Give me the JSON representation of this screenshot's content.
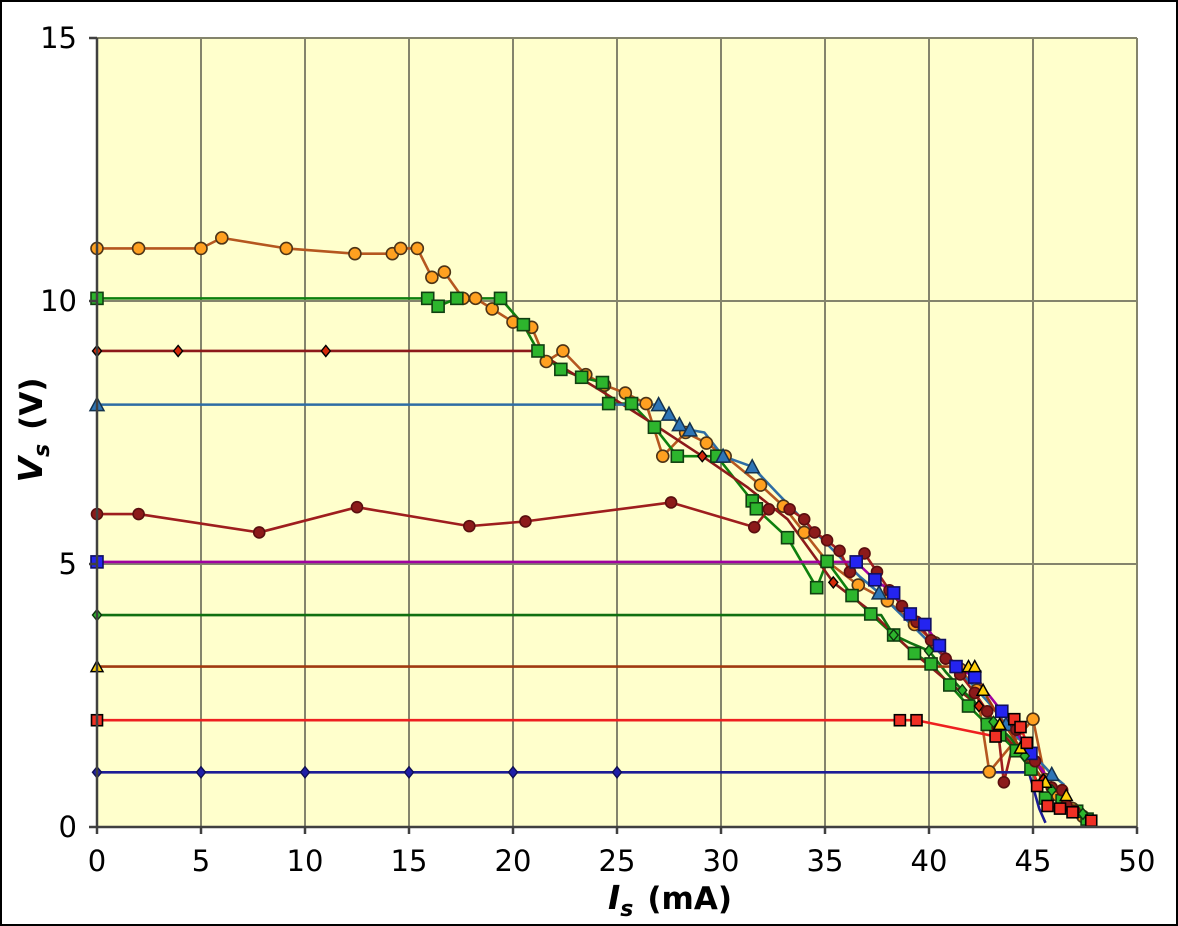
{
  "figure": {
    "background": "#ffffff",
    "plot_background": "#ffffcc",
    "gridline_color": "#84846c",
    "axis_color": "#404040",
    "border_color": "#000000",
    "tick_font_px": 29
  },
  "chart_data": {
    "type": "line",
    "title": "",
    "xlabel": "Is (mA)",
    "ylabel": "Vs (V)",
    "xlabel_parts": {
      "symbol": "I",
      "subscript": "s",
      "unit": "(mA)"
    },
    "ylabel_parts": {
      "symbol": "V",
      "subscript": "s",
      "unit": "(V)"
    },
    "xlim": [
      0,
      50
    ],
    "ylim": [
      0,
      15
    ],
    "x_ticks": [
      0,
      5,
      10,
      15,
      20,
      25,
      30,
      35,
      40,
      45,
      50
    ],
    "y_ticks": [
      0,
      5,
      10,
      15
    ],
    "y_gridlines": [
      5,
      10
    ],
    "grid": "vertical major every 5 mA, horizontal major every 5 V",
    "legend": "none",
    "description": "Power-supply output voltage Vs versus load current Is for ten voltage settings (11,10,9,8,6,5,4,3,2,1 V); each curve is flat until current limiting begins, then collapses toward ~48 mA at 0 V.",
    "series": [
      {
        "name": "Vset 11 V",
        "line_color": "#b5571f",
        "marker": {
          "shape": "circle",
          "fill": "#ffa020",
          "stroke": "#4d3417",
          "size": 12
        },
        "points": [
          [
            0,
            11.0
          ],
          [
            2,
            11.0
          ],
          [
            5,
            11.0
          ],
          [
            6,
            11.2
          ],
          [
            9.1,
            11.0
          ],
          [
            12.4,
            10.9
          ],
          [
            14.2,
            10.9
          ],
          [
            14.6,
            11.0
          ],
          [
            15.4,
            11.0
          ],
          [
            16.1,
            10.45
          ],
          [
            16.7,
            10.55
          ],
          [
            17.6,
            10.05
          ],
          [
            18.2,
            10.05
          ],
          [
            19.0,
            9.85
          ],
          [
            20.0,
            9.6
          ],
          [
            20.9,
            9.5
          ],
          [
            21.6,
            8.85
          ],
          [
            22.4,
            9.05
          ],
          [
            23.5,
            8.6
          ],
          [
            24.4,
            8.4
          ],
          [
            25.4,
            8.25
          ],
          [
            26.4,
            8.05
          ],
          [
            27.2,
            7.05
          ],
          [
            28.3,
            7.5
          ],
          [
            29.3,
            7.3
          ],
          [
            30.2,
            7.05
          ],
          [
            31.9,
            6.5
          ],
          [
            33.0,
            6.1
          ],
          [
            34.0,
            5.6
          ],
          [
            35.1,
            5.05
          ],
          [
            36.6,
            4.6
          ],
          [
            38.0,
            4.3
          ],
          [
            39.3,
            3.85
          ],
          [
            40.3,
            3.5
          ],
          [
            41.5,
            3.0
          ],
          [
            42.3,
            2.6
          ],
          [
            42.9,
            1.05
          ],
          [
            45.0,
            2.05
          ],
          [
            45.6,
            0.9
          ],
          [
            46.2,
            0.6
          ],
          [
            46.9,
            0.35
          ],
          [
            47.4,
            0.2
          ]
        ]
      },
      {
        "name": "Vset 10 V",
        "line_color": "#0e800e",
        "marker": {
          "shape": "square",
          "fill": "#2db52d",
          "stroke": "#113f11",
          "size": 12
        },
        "points": [
          [
            0,
            10.05
          ],
          [
            15.9,
            10.05
          ],
          [
            16.4,
            9.9
          ],
          [
            17.3,
            10.05
          ],
          [
            19.4,
            10.05
          ],
          [
            20.5,
            9.55
          ],
          [
            21.2,
            9.05
          ],
          [
            22.3,
            8.7
          ],
          [
            23.3,
            8.55
          ],
          [
            24.3,
            8.45
          ],
          [
            24.6,
            8.05
          ],
          [
            25.7,
            8.05
          ],
          [
            26.8,
            7.6
          ],
          [
            27.9,
            7.05
          ],
          [
            29.8,
            7.05
          ],
          [
            31.5,
            6.2
          ],
          [
            31.7,
            6.05
          ],
          [
            33.2,
            5.5
          ],
          [
            34.6,
            4.55
          ],
          [
            35.1,
            5.05
          ],
          [
            36.3,
            4.4
          ],
          [
            37.2,
            4.05
          ],
          [
            38.3,
            3.65
          ],
          [
            39.3,
            3.3
          ],
          [
            40.1,
            3.1
          ],
          [
            41.0,
            2.7
          ],
          [
            41.9,
            2.3
          ],
          [
            42.8,
            1.95
          ],
          [
            43.4,
            1.75
          ],
          [
            44.2,
            1.45
          ],
          [
            44.9,
            1.1
          ],
          [
            45.6,
            0.55
          ],
          [
            46.4,
            0.5
          ],
          [
            47.1,
            0.3
          ],
          [
            47.6,
            0.15
          ]
        ]
      },
      {
        "name": "Vset 9 V",
        "line_color": "#8c1a1a",
        "marker": {
          "shape": "diamond",
          "fill": "#d42a0a",
          "stroke": "#000000",
          "size": 9
        },
        "points": [
          [
            0,
            9.05
          ],
          [
            3.9,
            9.05
          ],
          [
            11.0,
            9.05
          ],
          [
            21.1,
            9.05
          ],
          [
            24.2,
            8.3
          ],
          [
            26.6,
            7.7
          ],
          [
            29.1,
            7.05
          ],
          [
            31.3,
            6.45
          ],
          [
            33.2,
            5.85
          ],
          [
            35.4,
            4.65
          ],
          [
            37.2,
            4.1
          ],
          [
            39.0,
            3.4
          ],
          [
            40.8,
            2.8
          ],
          [
            42.4,
            2.3
          ],
          [
            43.5,
            1.8
          ],
          [
            44.6,
            1.3
          ],
          [
            45.5,
            0.9
          ],
          [
            46.3,
            0.5
          ],
          [
            47.2,
            0.2
          ]
        ],
        "marker_points": [
          [
            0,
            9.05
          ],
          [
            3.9,
            9.05
          ],
          [
            11.0,
            9.05
          ],
          [
            29.1,
            7.05
          ],
          [
            35.4,
            4.65
          ],
          [
            42.4,
            2.3
          ],
          [
            45.5,
            0.9
          ]
        ]
      },
      {
        "name": "Vset 8 V",
        "line_color": "#2e6da4",
        "marker": {
          "shape": "triangle",
          "fill": "#2e75b6",
          "stroke": "#14324d",
          "size": 12
        },
        "points": [
          [
            0,
            8.03
          ],
          [
            27.0,
            8.03
          ],
          [
            27.5,
            7.85
          ],
          [
            28.0,
            7.65
          ],
          [
            28.5,
            7.55
          ],
          [
            29.2,
            7.5
          ],
          [
            30.1,
            7.05
          ],
          [
            31.5,
            6.85
          ],
          [
            32.7,
            6.35
          ],
          [
            33.8,
            5.9
          ],
          [
            34.8,
            5.5
          ],
          [
            35.8,
            5.1
          ],
          [
            36.7,
            4.75
          ],
          [
            37.6,
            4.45
          ],
          [
            38.5,
            4.1
          ],
          [
            39.4,
            3.75
          ],
          [
            40.3,
            3.4
          ],
          [
            41.2,
            3.05
          ],
          [
            42.1,
            2.7
          ],
          [
            42.9,
            2.35
          ],
          [
            43.7,
            1.95
          ],
          [
            44.5,
            1.6
          ],
          [
            45.2,
            1.3
          ],
          [
            45.9,
            1.0
          ],
          [
            46.5,
            0.8
          ]
        ],
        "marker_points": [
          [
            0,
            8.03
          ],
          [
            27.0,
            8.03
          ],
          [
            27.5,
            7.85
          ],
          [
            28.0,
            7.65
          ],
          [
            28.5,
            7.55
          ],
          [
            30.1,
            7.05
          ],
          [
            31.5,
            6.85
          ],
          [
            37.6,
            4.45
          ],
          [
            43.7,
            1.95
          ],
          [
            45.9,
            1.0
          ]
        ]
      },
      {
        "name": "Vset 6 V",
        "line_color": "#9e1e1e",
        "marker": {
          "shape": "circle",
          "fill": "#8c1a1a",
          "stroke": "#5a0f0f",
          "size": 11
        },
        "points": [
          [
            0,
            5.95
          ],
          [
            2,
            5.95
          ],
          [
            7.8,
            5.6
          ],
          [
            12.5,
            6.08
          ],
          [
            17.9,
            5.72
          ],
          [
            20.6,
            5.81
          ],
          [
            27.6,
            6.17
          ],
          [
            31.6,
            5.7
          ],
          [
            32.3,
            6.04
          ],
          [
            33.3,
            6.04
          ],
          [
            34.0,
            5.85
          ],
          [
            34.5,
            5.6
          ],
          [
            35.1,
            5.45
          ],
          [
            35.7,
            5.25
          ],
          [
            36.2,
            4.85
          ],
          [
            36.9,
            5.2
          ],
          [
            37.5,
            4.85
          ],
          [
            38.1,
            4.5
          ],
          [
            38.7,
            4.2
          ],
          [
            39.4,
            3.9
          ],
          [
            40.1,
            3.55
          ],
          [
            40.8,
            3.2
          ],
          [
            41.5,
            2.9
          ],
          [
            42.2,
            2.55
          ],
          [
            42.8,
            2.2
          ],
          [
            43.3,
            1.9
          ],
          [
            43.6,
            0.85
          ],
          [
            44.2,
            1.85
          ],
          [
            44.6,
            1.55
          ],
          [
            45.1,
            1.25
          ],
          [
            45.9,
            0.75
          ],
          [
            46.4,
            0.7
          ],
          [
            46.6,
            0.42
          ],
          [
            47.0,
            0.3
          ]
        ]
      },
      {
        "name": "Vset 5 V",
        "line_color": "#a000a0",
        "marker": {
          "shape": "square",
          "fill": "#2424f0",
          "stroke": "#101060",
          "size": 12
        },
        "points": [
          [
            0,
            5.04
          ],
          [
            36.5,
            5.04
          ],
          [
            37.4,
            4.7
          ],
          [
            38.3,
            4.45
          ],
          [
            39.1,
            4.05
          ],
          [
            39.8,
            3.85
          ],
          [
            40.5,
            3.45
          ],
          [
            41.3,
            3.05
          ],
          [
            42.2,
            2.85
          ],
          [
            42.9,
            2.5
          ],
          [
            43.5,
            2.2
          ],
          [
            44.2,
            1.8
          ],
          [
            44.9,
            1.4
          ],
          [
            45.5,
            1.05
          ],
          [
            46.1,
            0.7
          ],
          [
            46.7,
            0.4
          ],
          [
            47.2,
            0.2
          ]
        ],
        "marker_points": [
          [
            0,
            5.04
          ],
          [
            36.5,
            5.04
          ],
          [
            37.4,
            4.7
          ],
          [
            38.3,
            4.45
          ],
          [
            39.1,
            4.05
          ],
          [
            39.8,
            3.85
          ],
          [
            40.5,
            3.45
          ],
          [
            41.3,
            3.05
          ],
          [
            42.2,
            2.85
          ],
          [
            43.5,
            2.2
          ],
          [
            44.9,
            1.4
          ]
        ]
      },
      {
        "name": "Vset 4 V",
        "line_color": "#107010",
        "marker": {
          "shape": "diamond",
          "fill": "#2db52d",
          "stroke": "#0d330d",
          "size": 9
        },
        "points": [
          [
            0,
            4.03
          ],
          [
            37.7,
            4.03
          ],
          [
            38.3,
            3.65
          ],
          [
            39.1,
            3.5
          ],
          [
            40.0,
            3.35
          ],
          [
            40.8,
            2.95
          ],
          [
            41.6,
            2.6
          ],
          [
            42.4,
            2.3
          ],
          [
            43.1,
            2.0
          ],
          [
            43.9,
            1.7
          ],
          [
            44.6,
            1.35
          ],
          [
            45.2,
            1.05
          ],
          [
            45.9,
            0.7
          ],
          [
            46.6,
            0.5
          ],
          [
            47.4,
            0.25
          ]
        ],
        "marker_points": [
          [
            0,
            4.03
          ],
          [
            38.3,
            3.65
          ],
          [
            40.0,
            3.35
          ],
          [
            41.6,
            2.6
          ],
          [
            43.1,
            2.0
          ],
          [
            44.6,
            1.35
          ],
          [
            45.9,
            0.7
          ],
          [
            47.4,
            0.25
          ]
        ]
      },
      {
        "name": "Vset 3 V",
        "line_color": "#a03a10",
        "marker": {
          "shape": "triangle",
          "fill": "#ffd00a",
          "stroke": "#000000",
          "size": 10
        },
        "points": [
          [
            0,
            3.05
          ],
          [
            41.9,
            3.05
          ],
          [
            42.2,
            3.05
          ],
          [
            42.6,
            2.6
          ],
          [
            43.2,
            2.2
          ],
          [
            43.8,
            1.85
          ],
          [
            44.4,
            1.5
          ],
          [
            45.0,
            1.15
          ],
          [
            45.6,
            0.85
          ],
          [
            46.2,
            0.6
          ],
          [
            46.8,
            0.35
          ],
          [
            47.3,
            0.18
          ]
        ],
        "marker_points": [
          [
            0,
            3.05
          ],
          [
            41.9,
            3.05
          ],
          [
            42.2,
            3.05
          ],
          [
            42.6,
            2.6
          ],
          [
            43.4,
            1.95
          ],
          [
            44.4,
            1.5
          ],
          [
            45.6,
            0.85
          ],
          [
            46.6,
            0.6
          ]
        ]
      },
      {
        "name": "Vset 2 V",
        "line_color": "#ee2020",
        "marker": {
          "shape": "square",
          "fill": "#f03024",
          "stroke": "#000000",
          "size": 11
        },
        "points": [
          [
            0,
            2.03
          ],
          [
            38.6,
            2.03
          ],
          [
            39.4,
            2.03
          ],
          [
            43.2,
            1.72
          ],
          [
            44.1,
            2.05
          ],
          [
            44.4,
            1.9
          ],
          [
            44.7,
            1.6
          ],
          [
            45.2,
            0.78
          ],
          [
            45.7,
            0.4
          ],
          [
            46.3,
            0.35
          ],
          [
            46.9,
            0.28
          ],
          [
            47.8,
            0.12
          ]
        ]
      },
      {
        "name": "Vset 1 V",
        "line_color": "#1c1c96",
        "marker": {
          "shape": "diamond",
          "fill": "#2020a8",
          "stroke": "#101054",
          "size": 9
        },
        "points": [
          [
            0,
            1.04
          ],
          [
            5,
            1.04
          ],
          [
            10,
            1.04
          ],
          [
            15,
            1.04
          ],
          [
            20,
            1.04
          ],
          [
            25,
            1.04
          ],
          [
            44.8,
            1.04
          ],
          [
            45.3,
            0.35
          ],
          [
            45.6,
            0.08
          ]
        ],
        "marker_points": [
          [
            0,
            1.04
          ],
          [
            5,
            1.04
          ],
          [
            10,
            1.04
          ],
          [
            15,
            1.04
          ],
          [
            20,
            1.04
          ],
          [
            25,
            1.04
          ]
        ]
      }
    ]
  }
}
